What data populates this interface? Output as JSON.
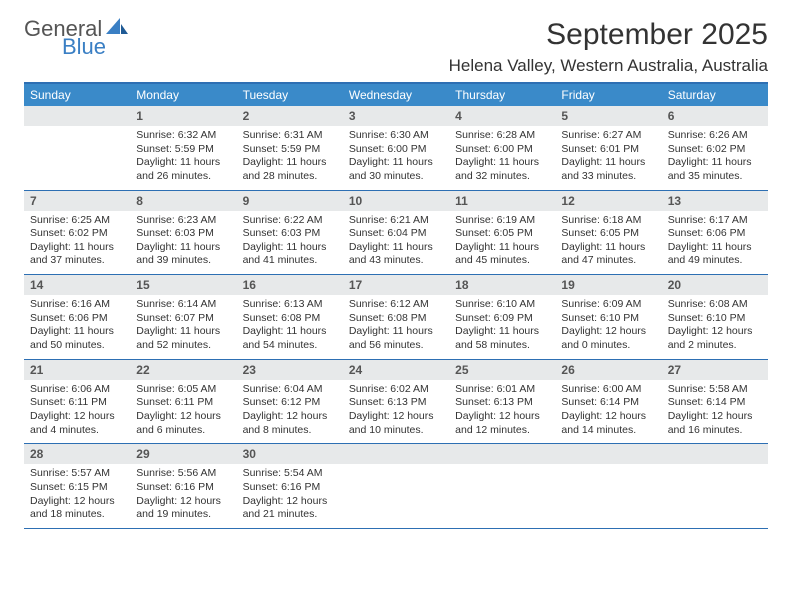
{
  "logo": {
    "word1": "General",
    "word2": "Blue"
  },
  "title": "September 2025",
  "location": "Helena Valley, Western Australia, Australia",
  "colors": {
    "header_bar": "#3a8ac9",
    "border": "#2d6fb3",
    "daynum_bg": "#e7e9ea",
    "logo_blue": "#3a7fc4",
    "text": "#333333"
  },
  "days_of_week": [
    "Sunday",
    "Monday",
    "Tuesday",
    "Wednesday",
    "Thursday",
    "Friday",
    "Saturday"
  ],
  "weeks": [
    [
      {
        "num": "",
        "lines": []
      },
      {
        "num": "1",
        "lines": [
          "Sunrise: 6:32 AM",
          "Sunset: 5:59 PM",
          "Daylight: 11 hours and 26 minutes."
        ]
      },
      {
        "num": "2",
        "lines": [
          "Sunrise: 6:31 AM",
          "Sunset: 5:59 PM",
          "Daylight: 11 hours and 28 minutes."
        ]
      },
      {
        "num": "3",
        "lines": [
          "Sunrise: 6:30 AM",
          "Sunset: 6:00 PM",
          "Daylight: 11 hours and 30 minutes."
        ]
      },
      {
        "num": "4",
        "lines": [
          "Sunrise: 6:28 AM",
          "Sunset: 6:00 PM",
          "Daylight: 11 hours and 32 minutes."
        ]
      },
      {
        "num": "5",
        "lines": [
          "Sunrise: 6:27 AM",
          "Sunset: 6:01 PM",
          "Daylight: 11 hours and 33 minutes."
        ]
      },
      {
        "num": "6",
        "lines": [
          "Sunrise: 6:26 AM",
          "Sunset: 6:02 PM",
          "Daylight: 11 hours and 35 minutes."
        ]
      }
    ],
    [
      {
        "num": "7",
        "lines": [
          "Sunrise: 6:25 AM",
          "Sunset: 6:02 PM",
          "Daylight: 11 hours and 37 minutes."
        ]
      },
      {
        "num": "8",
        "lines": [
          "Sunrise: 6:23 AM",
          "Sunset: 6:03 PM",
          "Daylight: 11 hours and 39 minutes."
        ]
      },
      {
        "num": "9",
        "lines": [
          "Sunrise: 6:22 AM",
          "Sunset: 6:03 PM",
          "Daylight: 11 hours and 41 minutes."
        ]
      },
      {
        "num": "10",
        "lines": [
          "Sunrise: 6:21 AM",
          "Sunset: 6:04 PM",
          "Daylight: 11 hours and 43 minutes."
        ]
      },
      {
        "num": "11",
        "lines": [
          "Sunrise: 6:19 AM",
          "Sunset: 6:05 PM",
          "Daylight: 11 hours and 45 minutes."
        ]
      },
      {
        "num": "12",
        "lines": [
          "Sunrise: 6:18 AM",
          "Sunset: 6:05 PM",
          "Daylight: 11 hours and 47 minutes."
        ]
      },
      {
        "num": "13",
        "lines": [
          "Sunrise: 6:17 AM",
          "Sunset: 6:06 PM",
          "Daylight: 11 hours and 49 minutes."
        ]
      }
    ],
    [
      {
        "num": "14",
        "lines": [
          "Sunrise: 6:16 AM",
          "Sunset: 6:06 PM",
          "Daylight: 11 hours and 50 minutes."
        ]
      },
      {
        "num": "15",
        "lines": [
          "Sunrise: 6:14 AM",
          "Sunset: 6:07 PM",
          "Daylight: 11 hours and 52 minutes."
        ]
      },
      {
        "num": "16",
        "lines": [
          "Sunrise: 6:13 AM",
          "Sunset: 6:08 PM",
          "Daylight: 11 hours and 54 minutes."
        ]
      },
      {
        "num": "17",
        "lines": [
          "Sunrise: 6:12 AM",
          "Sunset: 6:08 PM",
          "Daylight: 11 hours and 56 minutes."
        ]
      },
      {
        "num": "18",
        "lines": [
          "Sunrise: 6:10 AM",
          "Sunset: 6:09 PM",
          "Daylight: 11 hours and 58 minutes."
        ]
      },
      {
        "num": "19",
        "lines": [
          "Sunrise: 6:09 AM",
          "Sunset: 6:10 PM",
          "Daylight: 12 hours and 0 minutes."
        ]
      },
      {
        "num": "20",
        "lines": [
          "Sunrise: 6:08 AM",
          "Sunset: 6:10 PM",
          "Daylight: 12 hours and 2 minutes."
        ]
      }
    ],
    [
      {
        "num": "21",
        "lines": [
          "Sunrise: 6:06 AM",
          "Sunset: 6:11 PM",
          "Daylight: 12 hours and 4 minutes."
        ]
      },
      {
        "num": "22",
        "lines": [
          "Sunrise: 6:05 AM",
          "Sunset: 6:11 PM",
          "Daylight: 12 hours and 6 minutes."
        ]
      },
      {
        "num": "23",
        "lines": [
          "Sunrise: 6:04 AM",
          "Sunset: 6:12 PM",
          "Daylight: 12 hours and 8 minutes."
        ]
      },
      {
        "num": "24",
        "lines": [
          "Sunrise: 6:02 AM",
          "Sunset: 6:13 PM",
          "Daylight: 12 hours and 10 minutes."
        ]
      },
      {
        "num": "25",
        "lines": [
          "Sunrise: 6:01 AM",
          "Sunset: 6:13 PM",
          "Daylight: 12 hours and 12 minutes."
        ]
      },
      {
        "num": "26",
        "lines": [
          "Sunrise: 6:00 AM",
          "Sunset: 6:14 PM",
          "Daylight: 12 hours and 14 minutes."
        ]
      },
      {
        "num": "27",
        "lines": [
          "Sunrise: 5:58 AM",
          "Sunset: 6:14 PM",
          "Daylight: 12 hours and 16 minutes."
        ]
      }
    ],
    [
      {
        "num": "28",
        "lines": [
          "Sunrise: 5:57 AM",
          "Sunset: 6:15 PM",
          "Daylight: 12 hours and 18 minutes."
        ]
      },
      {
        "num": "29",
        "lines": [
          "Sunrise: 5:56 AM",
          "Sunset: 6:16 PM",
          "Daylight: 12 hours and 19 minutes."
        ]
      },
      {
        "num": "30",
        "lines": [
          "Sunrise: 5:54 AM",
          "Sunset: 6:16 PM",
          "Daylight: 12 hours and 21 minutes."
        ]
      },
      {
        "num": "",
        "lines": []
      },
      {
        "num": "",
        "lines": []
      },
      {
        "num": "",
        "lines": []
      },
      {
        "num": "",
        "lines": []
      }
    ]
  ]
}
